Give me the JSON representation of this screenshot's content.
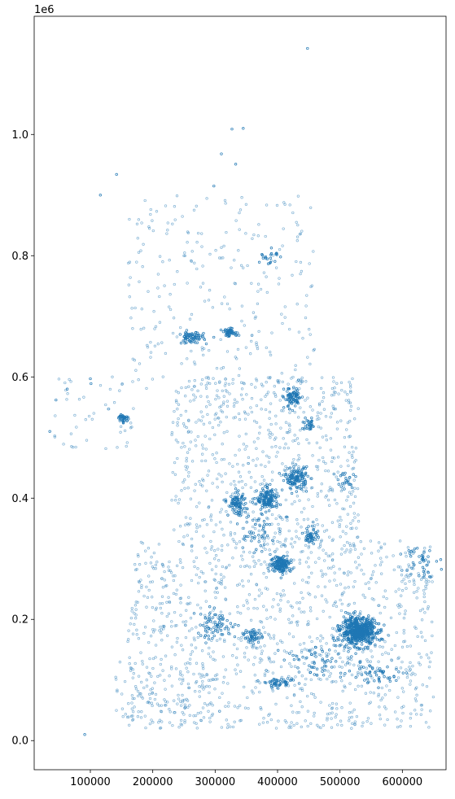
{
  "chart_data": {
    "type": "scatter",
    "title": "",
    "xlabel": "",
    "ylabel": "",
    "y_offset_label": "1e6",
    "xlim": [
      10000,
      670000
    ],
    "ylim": [
      -48000,
      1195000
    ],
    "x_ticks": [
      {
        "value": 100000,
        "label": "100000"
      },
      {
        "value": 200000,
        "label": "200000"
      },
      {
        "value": 300000,
        "label": "300000"
      },
      {
        "value": 400000,
        "label": "400000"
      },
      {
        "value": 500000,
        "label": "500000"
      },
      {
        "value": 600000,
        "label": "600000"
      }
    ],
    "y_ticks": [
      {
        "value": 0,
        "label": "0.0"
      },
      {
        "value": 200000,
        "label": "0.2"
      },
      {
        "value": 400000,
        "label": "0.4"
      },
      {
        "value": 600000,
        "label": "0.6"
      },
      {
        "value": 800000,
        "label": "0.8"
      },
      {
        "value": 1000000,
        "label": "1.0"
      }
    ],
    "grid": false,
    "marker_color": "#1f77b4",
    "marker": "hollow-circle",
    "clusters": [
      {
        "x": 530000,
        "y": 180000,
        "sx": 14000,
        "sy": 11000,
        "n": 600
      },
      {
        "x": 405000,
        "y": 292000,
        "sx": 8000,
        "sy": 7000,
        "n": 160
      },
      {
        "x": 385000,
        "y": 398000,
        "sx": 9000,
        "sy": 9000,
        "n": 140
      },
      {
        "x": 430000,
        "y": 433000,
        "sx": 9000,
        "sy": 9000,
        "n": 130
      },
      {
        "x": 335000,
        "y": 390000,
        "sx": 7000,
        "sy": 9000,
        "n": 90
      },
      {
        "x": 425000,
        "y": 565000,
        "sx": 7000,
        "sy": 9000,
        "n": 80
      },
      {
        "x": 262000,
        "y": 665000,
        "sx": 10000,
        "sy": 5000,
        "n": 70
      },
      {
        "x": 325000,
        "y": 673000,
        "sx": 7000,
        "sy": 3000,
        "n": 50
      },
      {
        "x": 360000,
        "y": 173000,
        "sx": 7000,
        "sy": 6000,
        "n": 50
      },
      {
        "x": 455000,
        "y": 340000,
        "sx": 5000,
        "sy": 8000,
        "n": 50
      },
      {
        "x": 152000,
        "y": 532000,
        "sx": 5000,
        "sy": 4000,
        "n": 35
      },
      {
        "x": 405000,
        "y": 95000,
        "sx": 12000,
        "sy": 3000,
        "n": 45
      },
      {
        "x": 450000,
        "y": 520000,
        "sx": 5000,
        "sy": 5000,
        "n": 30
      },
      {
        "x": 300000,
        "y": 190000,
        "sx": 18000,
        "sy": 12000,
        "n": 70
      },
      {
        "x": 460000,
        "y": 130000,
        "sx": 25000,
        "sy": 15000,
        "n": 60
      },
      {
        "x": 560000,
        "y": 110000,
        "sx": 25000,
        "sy": 8000,
        "n": 50
      },
      {
        "x": 630000,
        "y": 300000,
        "sx": 12000,
        "sy": 15000,
        "n": 40
      },
      {
        "x": 385000,
        "y": 800000,
        "sx": 8000,
        "sy": 8000,
        "n": 20
      },
      {
        "x": 365000,
        "y": 345000,
        "sx": 15000,
        "sy": 20000,
        "n": 50
      },
      {
        "x": 505000,
        "y": 430000,
        "sx": 10000,
        "sy": 10000,
        "n": 25
      }
    ],
    "background_regions": [
      {
        "x0": 160000,
        "x1": 650000,
        "y0": 20000,
        "y1": 330000,
        "n": 1100
      },
      {
        "x0": 230000,
        "x1": 530000,
        "y0": 320000,
        "y1": 600000,
        "n": 650
      },
      {
        "x0": 160000,
        "x1": 460000,
        "y0": 580000,
        "y1": 900000,
        "n": 260
      },
      {
        "x0": 40000,
        "x1": 170000,
        "y0": 480000,
        "y1": 600000,
        "n": 45
      },
      {
        "x0": 140000,
        "x1": 300000,
        "y0": 25000,
        "y1": 140000,
        "n": 90
      }
    ],
    "outliers": [
      [
        448000,
        1142000
      ],
      [
        327000,
        1009000
      ],
      [
        345000,
        1010000
      ],
      [
        310000,
        968000
      ],
      [
        142000,
        934000
      ],
      [
        333000,
        951000
      ],
      [
        298000,
        915000
      ],
      [
        116000,
        900000
      ],
      [
        91000,
        10000
      ],
      [
        35000,
        510000
      ],
      [
        45000,
        562000
      ],
      [
        63000,
        580000
      ],
      [
        100000,
        597000
      ],
      [
        101000,
        589000
      ]
    ]
  }
}
